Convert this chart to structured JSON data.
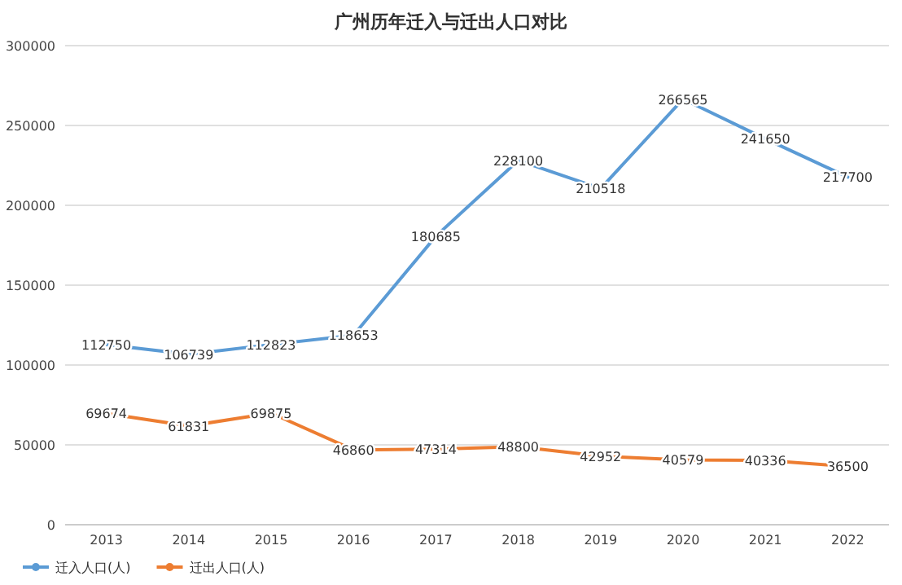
{
  "chart_data": {
    "type": "line",
    "title": "广州历年迁入与迁出人口对比",
    "categories": [
      "2013",
      "2014",
      "2015",
      "2016",
      "2017",
      "2018",
      "2019",
      "2020",
      "2021",
      "2022"
    ],
    "series": [
      {
        "name": "迁入人口(人)",
        "color": "#5b9bd5",
        "values": [
          112750,
          106739,
          112823,
          118653,
          180685,
          228100,
          210518,
          266565,
          241650,
          217700
        ]
      },
      {
        "name": "迁出人口(人)",
        "color": "#ed7d31",
        "values": [
          69674,
          61831,
          69875,
          46860,
          47314,
          48800,
          42952,
          40579,
          40336,
          36500
        ]
      }
    ],
    "ylim": [
      0,
      300000
    ],
    "yticks": [
      0,
      50000,
      100000,
      150000,
      200000,
      250000,
      300000
    ],
    "grid": "y",
    "legend": "bottom",
    "data_labels": true
  }
}
